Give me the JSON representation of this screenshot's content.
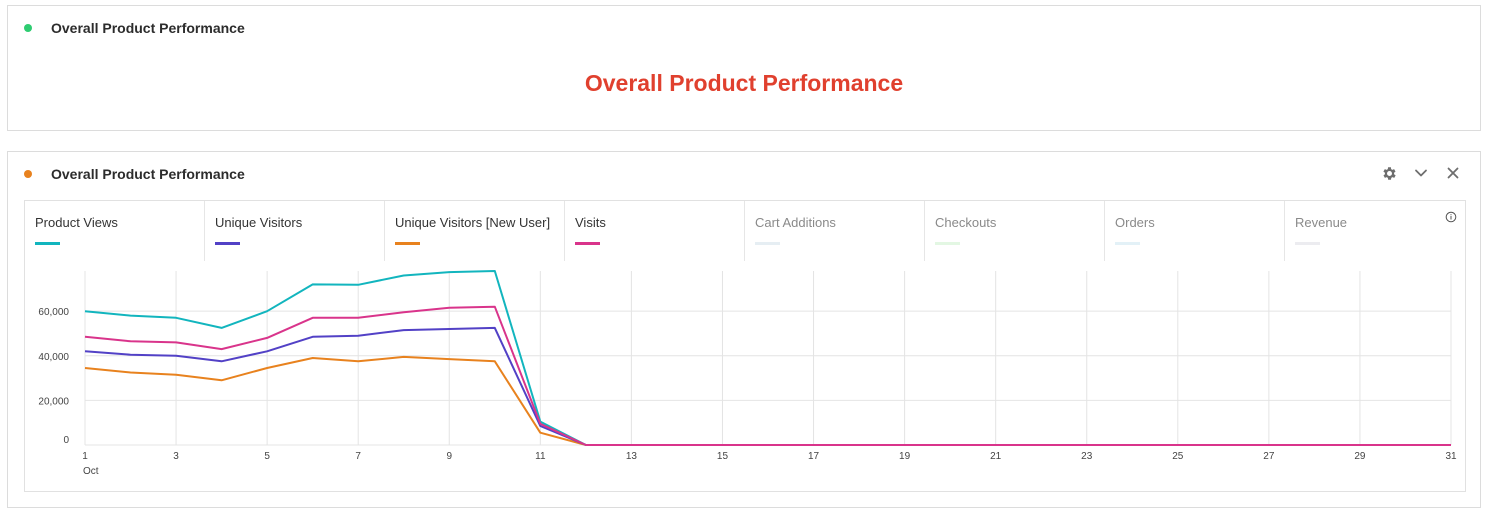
{
  "panel1": {
    "dot_color": "#2ecc71",
    "title": "Overall Product Performance",
    "text_title": "Overall Product Performance",
    "text_title_color": "#e0402e"
  },
  "panel2": {
    "dot_color": "#e8821e",
    "title": "Overall Product Performance",
    "actions": {
      "settings_icon": "gear-icon",
      "collapse_icon": "chevron-down-icon",
      "close_icon": "close-icon"
    },
    "legend": [
      {
        "label": "Product Views",
        "color": "#12b5be",
        "active": true
      },
      {
        "label": "Unique Visitors",
        "color": "#5241c6",
        "active": true
      },
      {
        "label": "Unique Visitors [New User]",
        "color": "#e8821e",
        "active": true
      },
      {
        "label": "Visits",
        "color": "#d9348b",
        "active": true
      },
      {
        "label": "Cart Additions",
        "color": "#e6eef3",
        "active": false
      },
      {
        "label": "Checkouts",
        "color": "#e3f7e3",
        "active": false
      },
      {
        "label": "Orders",
        "color": "#e3f1f7",
        "active": false
      },
      {
        "label": "Revenue",
        "color": "#ececf0",
        "active": false
      }
    ],
    "info_icon": "info-icon"
  },
  "chart_data": {
    "type": "line",
    "x": [
      1,
      2,
      3,
      4,
      5,
      6,
      7,
      8,
      9,
      10,
      11,
      12,
      13,
      14,
      15,
      16,
      17,
      18,
      19,
      20,
      21,
      22,
      23,
      24,
      25,
      26,
      27,
      28,
      29,
      30,
      31
    ],
    "x_tick_labels": [
      "1",
      "3",
      "5",
      "7",
      "9",
      "11",
      "13",
      "15",
      "17",
      "19",
      "21",
      "23",
      "25",
      "27",
      "29",
      "31"
    ],
    "x_sub_label": "Oct",
    "y_tick_labels": [
      "0",
      "20,000",
      "40,000",
      "60,000"
    ],
    "ylim": [
      0,
      78000
    ],
    "grid": true,
    "series": [
      {
        "name": "Product Views",
        "color": "#12b5be",
        "values": [
          60000,
          58000,
          57000,
          52500,
          60000,
          72000,
          71800,
          76000,
          77500,
          78000,
          10500,
          0,
          0,
          0,
          0,
          0,
          0,
          0,
          0,
          0,
          0,
          0,
          0,
          0,
          0,
          0,
          0,
          0,
          0,
          0,
          0
        ]
      },
      {
        "name": "Visits",
        "color": "#d9348b",
        "values": [
          48500,
          46500,
          46000,
          43000,
          48000,
          57000,
          57000,
          59500,
          61500,
          62000,
          9500,
          0,
          0,
          0,
          0,
          0,
          0,
          0,
          0,
          0,
          0,
          0,
          0,
          0,
          0,
          0,
          0,
          0,
          0,
          0,
          0
        ]
      },
      {
        "name": "Unique Visitors",
        "color": "#5241c6",
        "values": [
          42000,
          40500,
          40000,
          37500,
          42000,
          48500,
          49000,
          51500,
          52000,
          52500,
          8500,
          0,
          0,
          0,
          0,
          0,
          0,
          0,
          0,
          0,
          0,
          0,
          0,
          0,
          0,
          0,
          0,
          0,
          0,
          0,
          0
        ]
      },
      {
        "name": "Unique Visitors [New User]",
        "color": "#e8821e",
        "values": [
          34500,
          32500,
          31500,
          29000,
          34500,
          39000,
          37500,
          39500,
          38500,
          37500,
          5500,
          0,
          0,
          0,
          0,
          0,
          0,
          0,
          0,
          0,
          0,
          0,
          0,
          0,
          0,
          0,
          0,
          0,
          0,
          0,
          0
        ]
      }
    ]
  }
}
